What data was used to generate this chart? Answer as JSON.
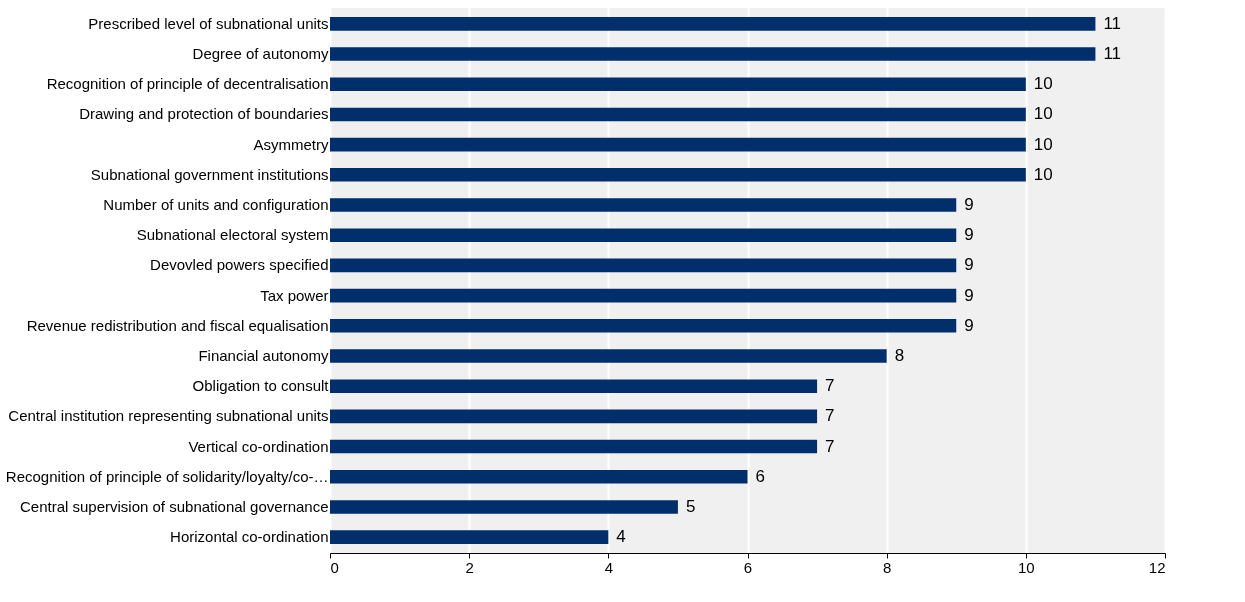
{
  "chart_data": {
    "type": "bar",
    "orientation": "horizontal",
    "categories": [
      "Prescribed level of subnational units",
      "Degree of autonomy",
      "Recognition of principle of decentralisation",
      "Drawing and protection of boundaries",
      "Asymmetry",
      "Subnational government institutions",
      "Number of units and configuration",
      "Subnational electoral system",
      "Devovled powers specified",
      "Tax power",
      "Revenue redistribution and fiscal equalisation",
      "Financial autonomy",
      "Obligation to consult",
      "Central institution representing subnational units",
      "Vertical co-ordination",
      "Recognition of principle of solidarity/loyalty/co-…",
      "Central supervision of subnational governance",
      "Horizontal co-ordination"
    ],
    "values": [
      11,
      11,
      10,
      10,
      10,
      10,
      9,
      9,
      9,
      9,
      9,
      8,
      7,
      7,
      7,
      6,
      5,
      4
    ],
    "color": "#002f6c",
    "xlim": [
      0,
      12
    ],
    "xticks": [
      0,
      2,
      4,
      6,
      8,
      10,
      12
    ],
    "grid": "x",
    "data_labels": true
  }
}
